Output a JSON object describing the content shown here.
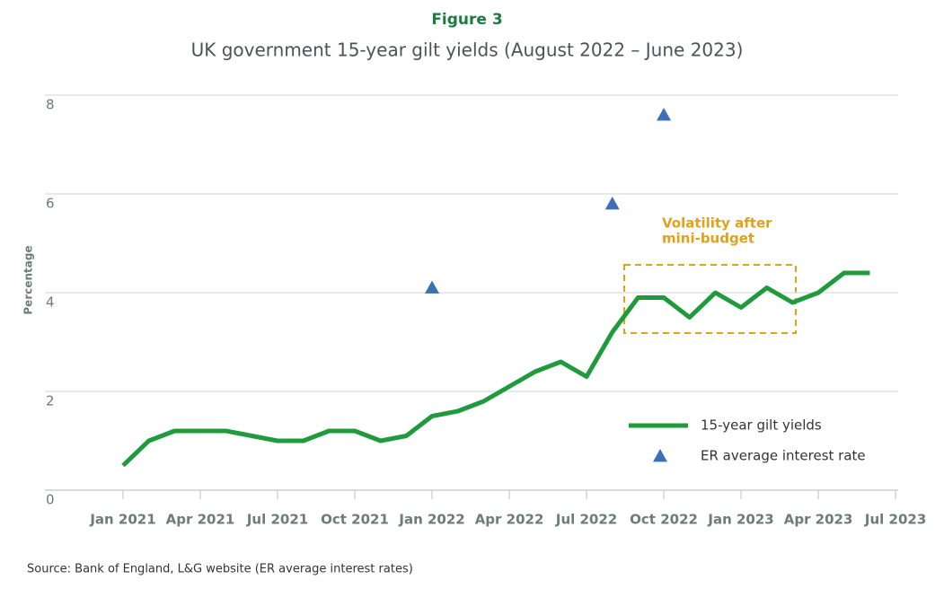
{
  "chart_data": {
    "type": "line",
    "figure_label": "Figure 3",
    "title": "UK government 15-year gilt yields (August 2022 – June 2023)",
    "y_label": "Percentage",
    "source": "Source: Bank of England, L&G website (ER average interest rates)",
    "annotation": [
      "Volatility after",
      "mini-budget"
    ],
    "categories": [
      "Jan 2021",
      null,
      null,
      "Apr 2021",
      null,
      null,
      "Jul 2021",
      null,
      null,
      "Oct 2021",
      null,
      null,
      "Jan 2022",
      null,
      null,
      "Apr 2022",
      null,
      null,
      "Jul 2022",
      null,
      null,
      "Oct 2022",
      null,
      null,
      "Jan 2023",
      null,
      null,
      "Apr 2023",
      null,
      null,
      "Jul 2023"
    ],
    "series": [
      {
        "name": "15-year gilt yields",
        "color": "#1f9a3c",
        "type": "line",
        "values": [
          0.5,
          1.0,
          1.2,
          1.2,
          1.2,
          1.1,
          1.0,
          1.0,
          1.2,
          1.2,
          1.0,
          1.1,
          1.5,
          1.6,
          1.8,
          2.1,
          2.4,
          2.6,
          2.3,
          3.2,
          3.9,
          3.9,
          3.5,
          4.0,
          3.7,
          4.1,
          3.8,
          4.0,
          4.4,
          4.4,
          null
        ]
      },
      {
        "name": "ER average interest rate",
        "color": "#3b70b5",
        "type": "scatter",
        "values": [
          null,
          null,
          null,
          null,
          null,
          null,
          null,
          null,
          null,
          null,
          null,
          null,
          4.1,
          null,
          null,
          null,
          null,
          null,
          null,
          5.8,
          null,
          7.6,
          null,
          null,
          null,
          null,
          null,
          null,
          null,
          null,
          null
        ]
      }
    ],
    "ylim": [
      0,
      8
    ],
    "yticks": [
      0,
      2,
      4,
      6,
      8
    ],
    "grid": true
  }
}
